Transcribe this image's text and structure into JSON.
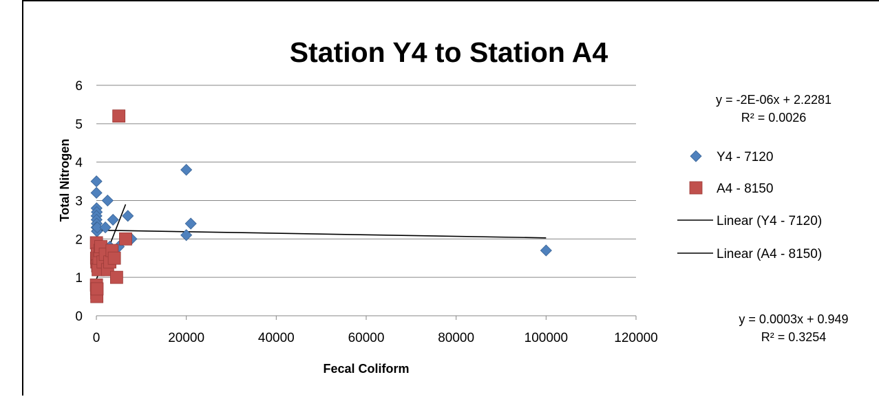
{
  "chart_data": {
    "type": "scatter",
    "title": "Station Y4 to Station A4",
    "xlabel": "Fecal Coliform",
    "ylabel": "Total Nitrogen",
    "xlim": [
      0,
      120000
    ],
    "ylim": [
      0,
      6
    ],
    "xticks": [
      "0",
      "20000",
      "40000",
      "60000",
      "80000",
      "100000",
      "120000"
    ],
    "yticks": [
      "0",
      "1",
      "2",
      "3",
      "4",
      "5",
      "6"
    ],
    "grid": "horizontal",
    "legend_position": "right",
    "series": [
      {
        "name": "Y4 - 7120",
        "color": "#4f81bd",
        "marker": "diamond",
        "points": [
          [
            20,
            3.5
          ],
          [
            20,
            3.2
          ],
          [
            50,
            2.8
          ],
          [
            100,
            2.7
          ],
          [
            30,
            2.6
          ],
          [
            60,
            2.5
          ],
          [
            80,
            2.4
          ],
          [
            40,
            2.3
          ],
          [
            110,
            2.2
          ],
          [
            150,
            2.2
          ],
          [
            200,
            2.3
          ],
          [
            20,
            1.6
          ],
          [
            2500,
            3.0
          ],
          [
            2000,
            2.3
          ],
          [
            3700,
            2.5
          ],
          [
            3000,
            1.8
          ],
          [
            5000,
            1.8
          ],
          [
            7000,
            2.6
          ],
          [
            7800,
            2.0
          ],
          [
            20000,
            3.8
          ],
          [
            20000,
            2.1
          ],
          [
            21000,
            2.4
          ],
          [
            100000,
            1.7
          ]
        ]
      },
      {
        "name": "A4 - 8150",
        "color": "#c0504d",
        "marker": "square",
        "points": [
          [
            20,
            1.9
          ],
          [
            50,
            1.5
          ],
          [
            100,
            1.4
          ],
          [
            200,
            1.6
          ],
          [
            300,
            1.3
          ],
          [
            400,
            1.2
          ],
          [
            600,
            1.5
          ],
          [
            800,
            1.7
          ],
          [
            1000,
            1.8
          ],
          [
            1500,
            1.4
          ],
          [
            2000,
            1.6
          ],
          [
            2500,
            1.2
          ],
          [
            3000,
            1.4
          ],
          [
            3500,
            1.7
          ],
          [
            4000,
            1.5
          ],
          [
            4500,
            1.0
          ],
          [
            5000,
            5.2
          ],
          [
            6500,
            2.0
          ],
          [
            20,
            0.8
          ],
          [
            50,
            0.7
          ],
          [
            80,
            0.6
          ],
          [
            100,
            0.5
          ],
          [
            150,
            0.7
          ]
        ]
      }
    ],
    "trendlines": [
      {
        "name": "Linear (Y4 - 7120)",
        "slope": -2e-06,
        "intercept": 2.2281,
        "x_range": [
          0,
          100000
        ],
        "equation": "y = -2E-06x + 2.2281",
        "r2": "R² = 0.0026"
      },
      {
        "name": "Linear (A4 - 8150)",
        "slope": 0.0003,
        "intercept": 0.949,
        "x_range": [
          0,
          6500
        ],
        "equation": "y = 0.0003x + 0.949",
        "r2": "R² = 0.3254"
      }
    ],
    "legend": [
      "Y4 - 7120",
      "A4 - 8150",
      "Linear (Y4 - 7120)",
      "Linear (A4 - 8150)"
    ]
  }
}
